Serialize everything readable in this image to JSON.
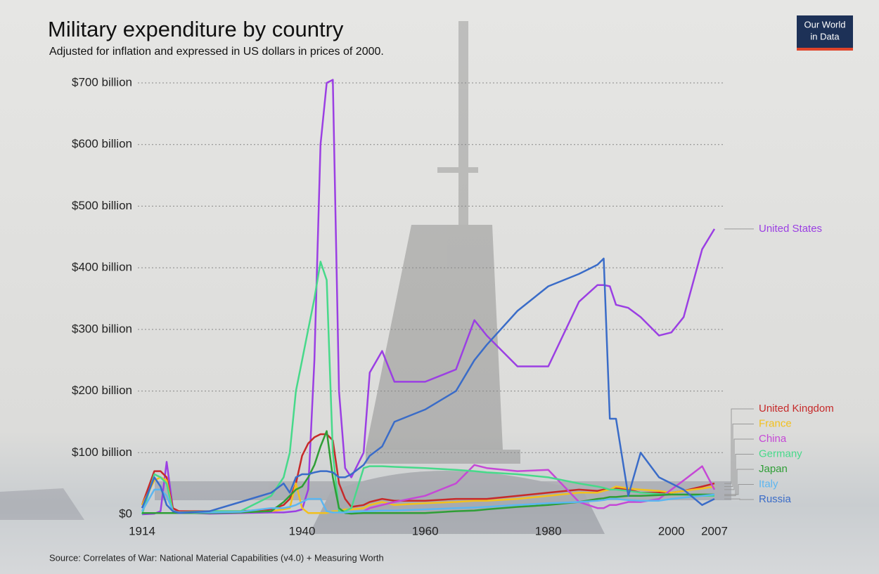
{
  "logo": [
    "Our World",
    "in Data"
  ],
  "chart_data": {
    "type": "line",
    "title": "Military expenditure by country",
    "subtitle": "Adjusted for inflation and expressed in US dollars in prices of 2000.",
    "source": "Source: Correlates of War: National Material Capabilities (v4.0) + Measuring Worth",
    "x": [
      1914,
      1916,
      1917,
      1918,
      1919,
      1920,
      1925,
      1930,
      1935,
      1937,
      1938,
      1939,
      1940,
      1941,
      1942,
      1943,
      1944,
      1945,
      1946,
      1947,
      1948,
      1950,
      1951,
      1953,
      1955,
      1960,
      1965,
      1968,
      1970,
      1975,
      1980,
      1985,
      1988,
      1989,
      1990,
      1991,
      1993,
      1995,
      1998,
      2000,
      2002,
      2005,
      2007
    ],
    "xlim": [
      1914,
      2007
    ],
    "xticks": [
      1914,
      1940,
      1960,
      1980,
      2000,
      2007
    ],
    "ylim": [
      0,
      700
    ],
    "yticks": [
      {
        "value": 0,
        "label": "$0"
      },
      {
        "value": 100,
        "label": "$100 billion"
      },
      {
        "value": 200,
        "label": "$200 billion"
      },
      {
        "value": 300,
        "label": "$300 billion"
      },
      {
        "value": 400,
        "label": "$400 billion"
      },
      {
        "value": 500,
        "label": "$500 billion"
      },
      {
        "value": 600,
        "label": "$600 billion"
      },
      {
        "value": 700,
        "label": "$700 billion"
      }
    ],
    "grid": true,
    "series": [
      {
        "name": "United States",
        "color": "#9b3fe3",
        "values": [
          0,
          1,
          5,
          85,
          10,
          3,
          1,
          2,
          3,
          3,
          4,
          5,
          8,
          40,
          250,
          600,
          700,
          705,
          200,
          75,
          60,
          100,
          230,
          265,
          215,
          215,
          235,
          315,
          290,
          240,
          240,
          345,
          372,
          372,
          370,
          340,
          335,
          320,
          290,
          295,
          320,
          430,
          463
        ]
      },
      {
        "name": "United Kingdom",
        "color": "#c62a2a",
        "values": [
          15,
          70,
          70,
          60,
          10,
          5,
          5,
          5,
          8,
          15,
          25,
          50,
          95,
          115,
          125,
          130,
          130,
          120,
          50,
          25,
          12,
          15,
          20,
          25,
          22,
          22,
          25,
          25,
          25,
          30,
          35,
          40,
          38,
          40,
          40,
          42,
          40,
          35,
          35,
          35,
          38,
          45,
          50
        ]
      },
      {
        "name": "France",
        "color": "#f2c01e",
        "values": [
          15,
          55,
          60,
          55,
          5,
          3,
          3,
          3,
          5,
          8,
          10,
          50,
          10,
          2,
          2,
          2,
          2,
          5,
          5,
          8,
          8,
          10,
          15,
          20,
          15,
          18,
          20,
          22,
          22,
          25,
          30,
          35,
          35,
          38,
          40,
          45,
          42,
          40,
          38,
          35,
          38,
          42,
          45
        ]
      },
      {
        "name": "China",
        "color": "#c548d6",
        "values": [
          null,
          null,
          null,
          null,
          null,
          null,
          null,
          null,
          null,
          null,
          null,
          null,
          null,
          null,
          null,
          null,
          null,
          null,
          null,
          null,
          null,
          5,
          10,
          15,
          20,
          30,
          50,
          80,
          75,
          70,
          72,
          20,
          10,
          10,
          15,
          15,
          20,
          20,
          25,
          40,
          55,
          78,
          40
        ]
      },
      {
        "name": "Germany",
        "color": "#47d98a",
        "values": [
          0,
          65,
          60,
          50,
          5,
          3,
          5,
          5,
          30,
          60,
          100,
          200,
          250,
          300,
          350,
          410,
          380,
          100,
          5,
          5,
          10,
          75,
          78,
          78,
          77,
          75,
          72,
          70,
          68,
          65,
          60,
          50,
          45,
          43,
          40,
          40,
          38,
          35,
          33,
          32,
          32,
          30,
          30
        ]
      },
      {
        "name": "Japan",
        "color": "#2f9e36",
        "values": [
          2,
          2,
          2,
          2,
          2,
          2,
          2,
          3,
          5,
          20,
          30,
          40,
          45,
          60,
          80,
          110,
          135,
          60,
          10,
          2,
          1,
          2,
          2,
          2,
          2,
          2,
          5,
          6,
          8,
          12,
          15,
          20,
          25,
          26,
          28,
          28,
          30,
          30,
          31,
          32,
          32,
          32,
          32
        ]
      },
      {
        "name": "Italy",
        "color": "#5cb6f0",
        "values": [
          5,
          40,
          40,
          30,
          5,
          3,
          3,
          4,
          10,
          10,
          12,
          15,
          20,
          25,
          25,
          25,
          5,
          3,
          3,
          3,
          4,
          5,
          5,
          6,
          6,
          8,
          10,
          11,
          12,
          15,
          18,
          20,
          22,
          23,
          25,
          25,
          23,
          22,
          22,
          25,
          27,
          30,
          32
        ]
      },
      {
        "name": "Russia",
        "color": "#3a6cc8",
        "values": [
          10,
          60,
          45,
          15,
          5,
          2,
          5,
          20,
          35,
          50,
          35,
          60,
          65,
          65,
          68,
          70,
          70,
          68,
          60,
          60,
          65,
          80,
          95,
          110,
          150,
          170,
          200,
          250,
          275,
          330,
          370,
          390,
          405,
          415,
          155,
          155,
          30,
          100,
          60,
          50,
          40,
          15,
          25
        ]
      }
    ]
  }
}
